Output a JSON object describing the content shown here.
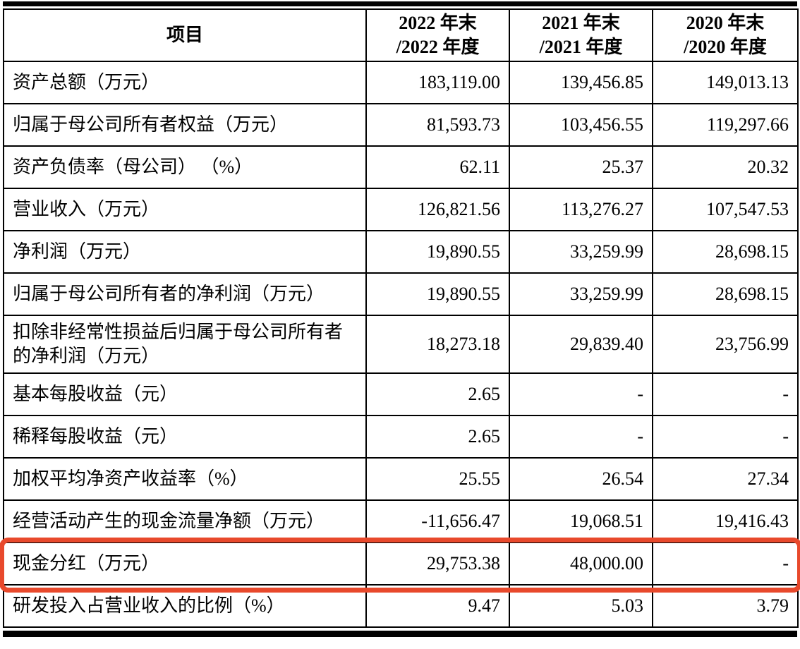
{
  "table": {
    "header": [
      "项目",
      "2022 年末\n/2022 年度",
      "2021 年末\n/2021 年度",
      "2020 年末\n/2020 年度"
    ],
    "rows": [
      {
        "label": "资产总额（万元）",
        "values": [
          "183,119.00",
          "139,456.85",
          "149,013.13"
        ]
      },
      {
        "label": "归属于母公司所有者权益（万元）",
        "values": [
          "81,593.73",
          "103,456.55",
          "119,297.66"
        ]
      },
      {
        "label": "资产负债率（母公司） （%）",
        "values": [
          "62.11",
          "25.37",
          "20.32"
        ]
      },
      {
        "label": "营业收入（万元）",
        "values": [
          "126,821.56",
          "113,276.27",
          "107,547.53"
        ]
      },
      {
        "label": "净利润（万元）",
        "values": [
          "19,890.55",
          "33,259.99",
          "28,698.15"
        ]
      },
      {
        "label": "归属于母公司所有者的净利润（万元）",
        "values": [
          "19,890.55",
          "33,259.99",
          "28,698.15"
        ]
      },
      {
        "label": "扣除非经常性损益后归属于母公司所有者的净利润（万元）",
        "values": [
          "18,273.18",
          "29,839.40",
          "23,756.99"
        ]
      },
      {
        "label": "基本每股收益（元）",
        "values": [
          "2.65",
          "-",
          "-"
        ]
      },
      {
        "label": "稀释每股收益（元）",
        "values": [
          "2.65",
          "-",
          "-"
        ]
      },
      {
        "label": "加权平均净资产收益率（%）",
        "values": [
          "25.55",
          "26.54",
          "27.34"
        ]
      },
      {
        "label": "经营活动产生的现金流量净额（万元）",
        "values": [
          "-11,656.47",
          "19,068.51",
          "19,416.43"
        ]
      },
      {
        "label": "现金分红（万元）",
        "values": [
          "29,753.38",
          "48,000.00",
          "-"
        ]
      },
      {
        "label": "研发投入占营业收入的比例（%）",
        "values": [
          "9.47",
          "5.03",
          "3.79"
        ]
      }
    ],
    "highlight_row_index": 11,
    "highlight_color": "#e8492c",
    "border_color": "#000000"
  }
}
